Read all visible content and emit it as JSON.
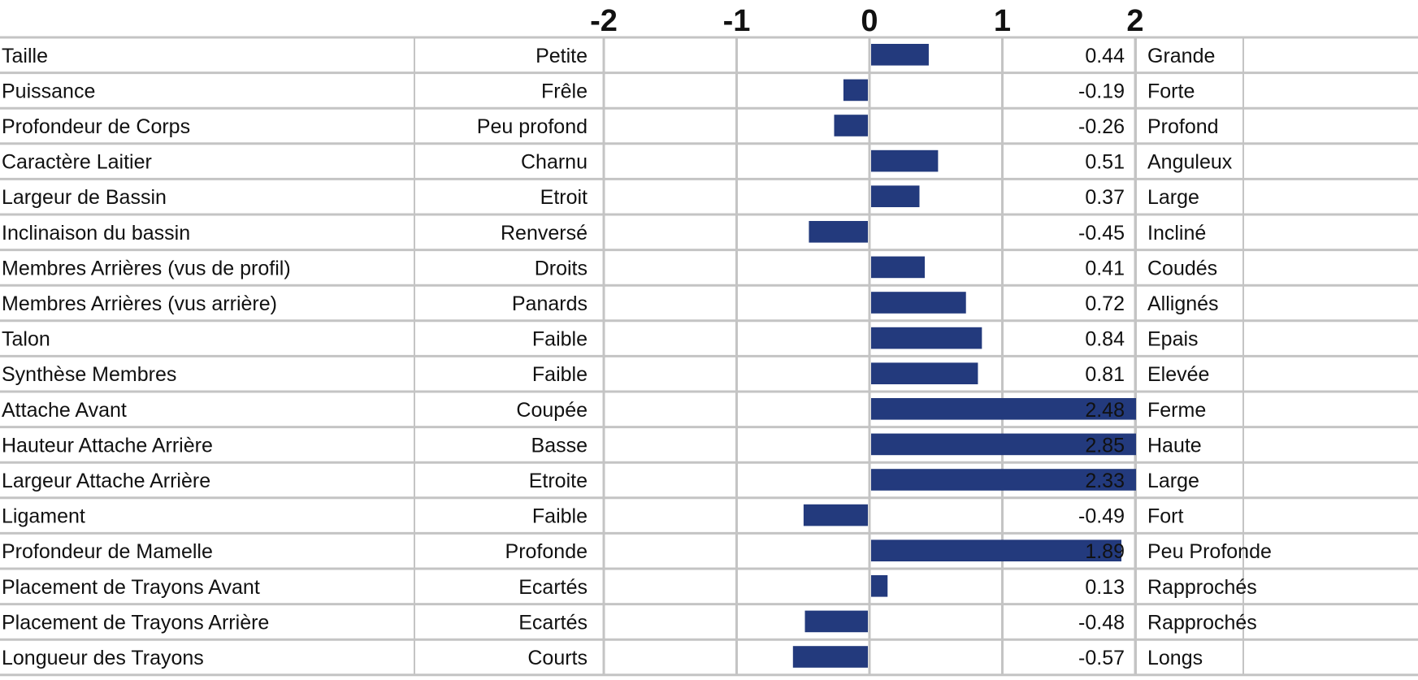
{
  "chart_data": {
    "type": "bar",
    "orientation": "horizontal",
    "xlim": [
      -2,
      2
    ],
    "x_ticks": [
      "-2",
      "-1",
      "0",
      "1",
      "2"
    ],
    "bar_color": "#233a7d",
    "grid": true,
    "rows": [
      {
        "trait": "Taille",
        "low": "Petite",
        "value": 0.44,
        "label": "0.44",
        "high": "Grande"
      },
      {
        "trait": "Puissance",
        "low": "Frêle",
        "value": -0.19,
        "label": "-0.19",
        "high": "Forte"
      },
      {
        "trait": "Profondeur de Corps",
        "low": "Peu profond",
        "value": -0.26,
        "label": "-0.26",
        "high": "Profond"
      },
      {
        "trait": "Caractère Laitier",
        "low": "Charnu",
        "value": 0.51,
        "label": "0.51",
        "high": "Anguleux"
      },
      {
        "trait": "Largeur de Bassin",
        "low": "Etroit",
        "value": 0.37,
        "label": "0.37",
        "high": "Large"
      },
      {
        "trait": "Inclinaison du bassin",
        "low": "Renversé",
        "value": -0.45,
        "label": "-0.45",
        "high": "Incliné"
      },
      {
        "trait": "Membres Arrières (vus de profil)",
        "low": "Droits",
        "value": 0.41,
        "label": "0.41",
        "high": "Coudés"
      },
      {
        "trait": "Membres Arrières (vus arrière)",
        "low": "Panards",
        "value": 0.72,
        "label": "0.72",
        "high": "Allignés"
      },
      {
        "trait": "Talon",
        "low": "Faible",
        "value": 0.84,
        "label": "0.84",
        "high": "Epais"
      },
      {
        "trait": "Synthèse Membres",
        "low": "Faible",
        "value": 0.81,
        "label": "0.81",
        "high": "Elevée"
      },
      {
        "trait": "Attache Avant",
        "low": "Coupée",
        "value": 2.48,
        "label": "2.48",
        "high": "Ferme"
      },
      {
        "trait": "Hauteur Attache Arrière",
        "low": "Basse",
        "value": 2.85,
        "label": "2.85",
        "high": "Haute"
      },
      {
        "trait": "Largeur Attache Arrière",
        "low": "Etroite",
        "value": 2.33,
        "label": "2.33",
        "high": "Large"
      },
      {
        "trait": "Ligament",
        "low": "Faible",
        "value": -0.49,
        "label": "-0.49",
        "high": "Fort"
      },
      {
        "trait": "Profondeur de Mamelle",
        "low": "Profonde",
        "value": 1.89,
        "label": "1.89",
        "high": "Peu Profonde"
      },
      {
        "trait": "Placement de Trayons Avant",
        "low": "Ecartés",
        "value": 0.13,
        "label": "0.13",
        "high": "Rapprochés"
      },
      {
        "trait": "Placement de Trayons Arrière",
        "low": "Ecartés",
        "value": -0.48,
        "label": "-0.48",
        "high": "Rapprochés"
      },
      {
        "trait": "Longueur des Trayons",
        "low": "Courts",
        "value": -0.57,
        "label": "-0.57",
        "high": "Longs"
      }
    ]
  }
}
